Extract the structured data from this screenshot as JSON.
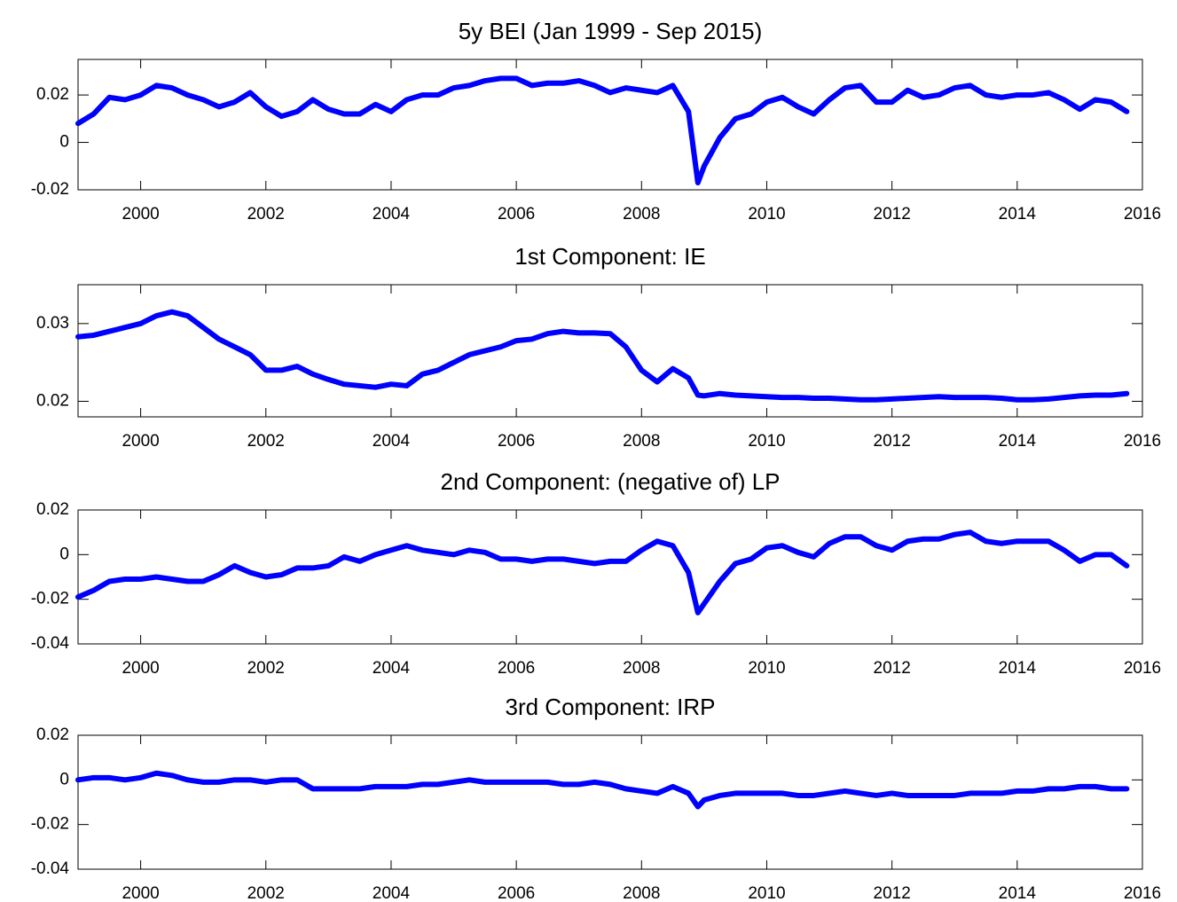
{
  "chart_data": [
    {
      "type": "line",
      "title": "5y BEI (Jan 1999 - Sep 2015)",
      "x": [
        1999,
        1999.25,
        1999.5,
        1999.75,
        2000,
        2000.25,
        2000.5,
        2000.75,
        2001,
        2001.25,
        2001.5,
        2001.75,
        2002,
        2002.25,
        2002.5,
        2002.75,
        2003,
        2003.25,
        2003.5,
        2003.75,
        2004,
        2004.25,
        2004.5,
        2004.75,
        2005,
        2005.25,
        2005.5,
        2005.75,
        2006,
        2006.25,
        2006.5,
        2006.75,
        2007,
        2007.25,
        2007.5,
        2007.75,
        2008,
        2008.25,
        2008.5,
        2008.75,
        2008.9,
        2009,
        2009.25,
        2009.5,
        2009.75,
        2010,
        2010.25,
        2010.5,
        2010.75,
        2011,
        2011.25,
        2011.5,
        2011.75,
        2012,
        2012.25,
        2012.5,
        2012.75,
        2013,
        2013.25,
        2013.5,
        2013.75,
        2014,
        2014.25,
        2014.5,
        2014.75,
        2015,
        2015.25,
        2015.5,
        2015.75
      ],
      "series": [
        {
          "color": "#0000ff",
          "values": [
            0.008,
            0.012,
            0.019,
            0.018,
            0.02,
            0.024,
            0.023,
            0.02,
            0.018,
            0.015,
            0.017,
            0.021,
            0.015,
            0.011,
            0.013,
            0.018,
            0.014,
            0.012,
            0.012,
            0.016,
            0.013,
            0.018,
            0.02,
            0.02,
            0.023,
            0.024,
            0.026,
            0.027,
            0.027,
            0.024,
            0.025,
            0.025,
            0.026,
            0.024,
            0.021,
            0.023,
            0.022,
            0.021,
            0.024,
            0.013,
            -0.017,
            -0.01,
            0.002,
            0.01,
            0.012,
            0.017,
            0.019,
            0.015,
            0.012,
            0.018,
            0.023,
            0.024,
            0.017,
            0.017,
            0.022,
            0.019,
            0.02,
            0.023,
            0.024,
            0.02,
            0.019,
            0.02,
            0.02,
            0.021,
            0.018,
            0.014,
            0.018,
            0.017,
            0.013
          ]
        }
      ],
      "xlim": [
        1999,
        2016
      ],
      "xticks": [
        2000,
        2002,
        2004,
        2006,
        2008,
        2010,
        2012,
        2014,
        2016
      ],
      "ylim": [
        -0.02,
        0.035
      ],
      "yticks": [
        -0.02,
        0,
        0.02
      ]
    },
    {
      "type": "line",
      "title": "1st Component: IE",
      "x": [
        1999,
        1999.25,
        1999.5,
        1999.75,
        2000,
        2000.25,
        2000.5,
        2000.75,
        2001,
        2001.25,
        2001.5,
        2001.75,
        2002,
        2002.25,
        2002.5,
        2002.75,
        2003,
        2003.25,
        2003.5,
        2003.75,
        2004,
        2004.25,
        2004.5,
        2004.75,
        2005,
        2005.25,
        2005.5,
        2005.75,
        2006,
        2006.25,
        2006.5,
        2006.75,
        2007,
        2007.25,
        2007.5,
        2007.75,
        2008,
        2008.25,
        2008.5,
        2008.75,
        2008.9,
        2009,
        2009.25,
        2009.5,
        2009.75,
        2010,
        2010.25,
        2010.5,
        2010.75,
        2011,
        2011.25,
        2011.5,
        2011.75,
        2012,
        2012.25,
        2012.5,
        2012.75,
        2013,
        2013.25,
        2013.5,
        2013.75,
        2014,
        2014.25,
        2014.5,
        2014.75,
        2015,
        2015.25,
        2015.5,
        2015.75
      ],
      "series": [
        {
          "color": "#0000ff",
          "values": [
            0.0283,
            0.0285,
            0.029,
            0.0295,
            0.03,
            0.031,
            0.0315,
            0.031,
            0.0295,
            0.028,
            0.027,
            0.026,
            0.024,
            0.024,
            0.0245,
            0.0235,
            0.0228,
            0.0222,
            0.022,
            0.0218,
            0.0222,
            0.022,
            0.0235,
            0.024,
            0.025,
            0.026,
            0.0265,
            0.027,
            0.0278,
            0.028,
            0.0287,
            0.029,
            0.0288,
            0.0288,
            0.0287,
            0.027,
            0.024,
            0.0225,
            0.0242,
            0.023,
            0.0208,
            0.0207,
            0.021,
            0.0208,
            0.0207,
            0.0206,
            0.0205,
            0.0205,
            0.0204,
            0.0204,
            0.0203,
            0.0202,
            0.0202,
            0.0203,
            0.0204,
            0.0205,
            0.0206,
            0.0205,
            0.0205,
            0.0205,
            0.0204,
            0.0202,
            0.0202,
            0.0203,
            0.0205,
            0.0207,
            0.0208,
            0.0208,
            0.021
          ]
        }
      ],
      "xlim": [
        1999,
        2016
      ],
      "xticks": [
        2000,
        2002,
        2004,
        2006,
        2008,
        2010,
        2012,
        2014,
        2016
      ],
      "ylim": [
        0.018,
        0.035
      ],
      "yticks": [
        0.02,
        0.03
      ]
    },
    {
      "type": "line",
      "title": "2nd Component: (negative of) LP",
      "x": [
        1999,
        1999.25,
        1999.5,
        1999.75,
        2000,
        2000.25,
        2000.5,
        2000.75,
        2001,
        2001.25,
        2001.5,
        2001.75,
        2002,
        2002.25,
        2002.5,
        2002.75,
        2003,
        2003.25,
        2003.5,
        2003.75,
        2004,
        2004.25,
        2004.5,
        2004.75,
        2005,
        2005.25,
        2005.5,
        2005.75,
        2006,
        2006.25,
        2006.5,
        2006.75,
        2007,
        2007.25,
        2007.5,
        2007.75,
        2008,
        2008.25,
        2008.5,
        2008.75,
        2008.9,
        2009,
        2009.25,
        2009.5,
        2009.75,
        2010,
        2010.25,
        2010.5,
        2010.75,
        2011,
        2011.25,
        2011.5,
        2011.75,
        2012,
        2012.25,
        2012.5,
        2012.75,
        2013,
        2013.25,
        2013.5,
        2013.75,
        2014,
        2014.25,
        2014.5,
        2014.75,
        2015,
        2015.25,
        2015.5,
        2015.75
      ],
      "series": [
        {
          "color": "#0000ff",
          "values": [
            -0.019,
            -0.016,
            -0.012,
            -0.011,
            -0.011,
            -0.01,
            -0.011,
            -0.012,
            -0.012,
            -0.009,
            -0.005,
            -0.008,
            -0.01,
            -0.009,
            -0.006,
            -0.006,
            -0.005,
            -0.001,
            -0.003,
            0,
            0.002,
            0.004,
            0.002,
            0.001,
            0,
            0.002,
            0.001,
            -0.002,
            -0.002,
            -0.003,
            -0.002,
            -0.002,
            -0.003,
            -0.004,
            -0.003,
            -0.003,
            0.002,
            0.006,
            0.004,
            -0.008,
            -0.026,
            -0.022,
            -0.012,
            -0.004,
            -0.002,
            0.003,
            0.004,
            0.001,
            -0.001,
            0.005,
            0.008,
            0.008,
            0.004,
            0.002,
            0.006,
            0.007,
            0.007,
            0.009,
            0.01,
            0.006,
            0.005,
            0.006,
            0.006,
            0.006,
            0.002,
            -0.003,
            0,
            0,
            -0.005
          ]
        }
      ],
      "xlim": [
        1999,
        2016
      ],
      "xticks": [
        2000,
        2002,
        2004,
        2006,
        2008,
        2010,
        2012,
        2014,
        2016
      ],
      "ylim": [
        -0.04,
        0.02
      ],
      "yticks": [
        -0.04,
        -0.02,
        0,
        0.02
      ]
    },
    {
      "type": "line",
      "title": "3rd Component: IRP",
      "x": [
        1999,
        1999.25,
        1999.5,
        1999.75,
        2000,
        2000.25,
        2000.5,
        2000.75,
        2001,
        2001.25,
        2001.5,
        2001.75,
        2002,
        2002.25,
        2002.5,
        2002.75,
        2003,
        2003.25,
        2003.5,
        2003.75,
        2004,
        2004.25,
        2004.5,
        2004.75,
        2005,
        2005.25,
        2005.5,
        2005.75,
        2006,
        2006.25,
        2006.5,
        2006.75,
        2007,
        2007.25,
        2007.5,
        2007.75,
        2008,
        2008.25,
        2008.5,
        2008.75,
        2008.9,
        2009,
        2009.25,
        2009.5,
        2009.75,
        2010,
        2010.25,
        2010.5,
        2010.75,
        2011,
        2011.25,
        2011.5,
        2011.75,
        2012,
        2012.25,
        2012.5,
        2012.75,
        2013,
        2013.25,
        2013.5,
        2013.75,
        2014,
        2014.25,
        2014.5,
        2014.75,
        2015,
        2015.25,
        2015.5,
        2015.75
      ],
      "series": [
        {
          "color": "#0000ff",
          "values": [
            0,
            0.001,
            0.001,
            0,
            0.001,
            0.003,
            0.002,
            0,
            -0.001,
            -0.001,
            0,
            0,
            -0.001,
            0,
            0,
            -0.004,
            -0.004,
            -0.004,
            -0.004,
            -0.003,
            -0.003,
            -0.003,
            -0.002,
            -0.002,
            -0.001,
            0,
            -0.001,
            -0.001,
            -0.001,
            -0.001,
            -0.001,
            -0.002,
            -0.002,
            -0.001,
            -0.002,
            -0.004,
            -0.005,
            -0.006,
            -0.003,
            -0.006,
            -0.012,
            -0.009,
            -0.007,
            -0.006,
            -0.006,
            -0.006,
            -0.006,
            -0.007,
            -0.007,
            -0.006,
            -0.005,
            -0.006,
            -0.007,
            -0.006,
            -0.007,
            -0.007,
            -0.007,
            -0.007,
            -0.006,
            -0.006,
            -0.006,
            -0.005,
            -0.005,
            -0.004,
            -0.004,
            -0.003,
            -0.003,
            -0.004,
            -0.004
          ]
        }
      ],
      "xlim": [
        1999,
        2016
      ],
      "xticks": [
        2000,
        2002,
        2004,
        2006,
        2008,
        2010,
        2012,
        2014,
        2016
      ],
      "ylim": [
        -0.04,
        0.02
      ],
      "yticks": [
        -0.04,
        -0.02,
        0,
        0.02
      ]
    }
  ]
}
